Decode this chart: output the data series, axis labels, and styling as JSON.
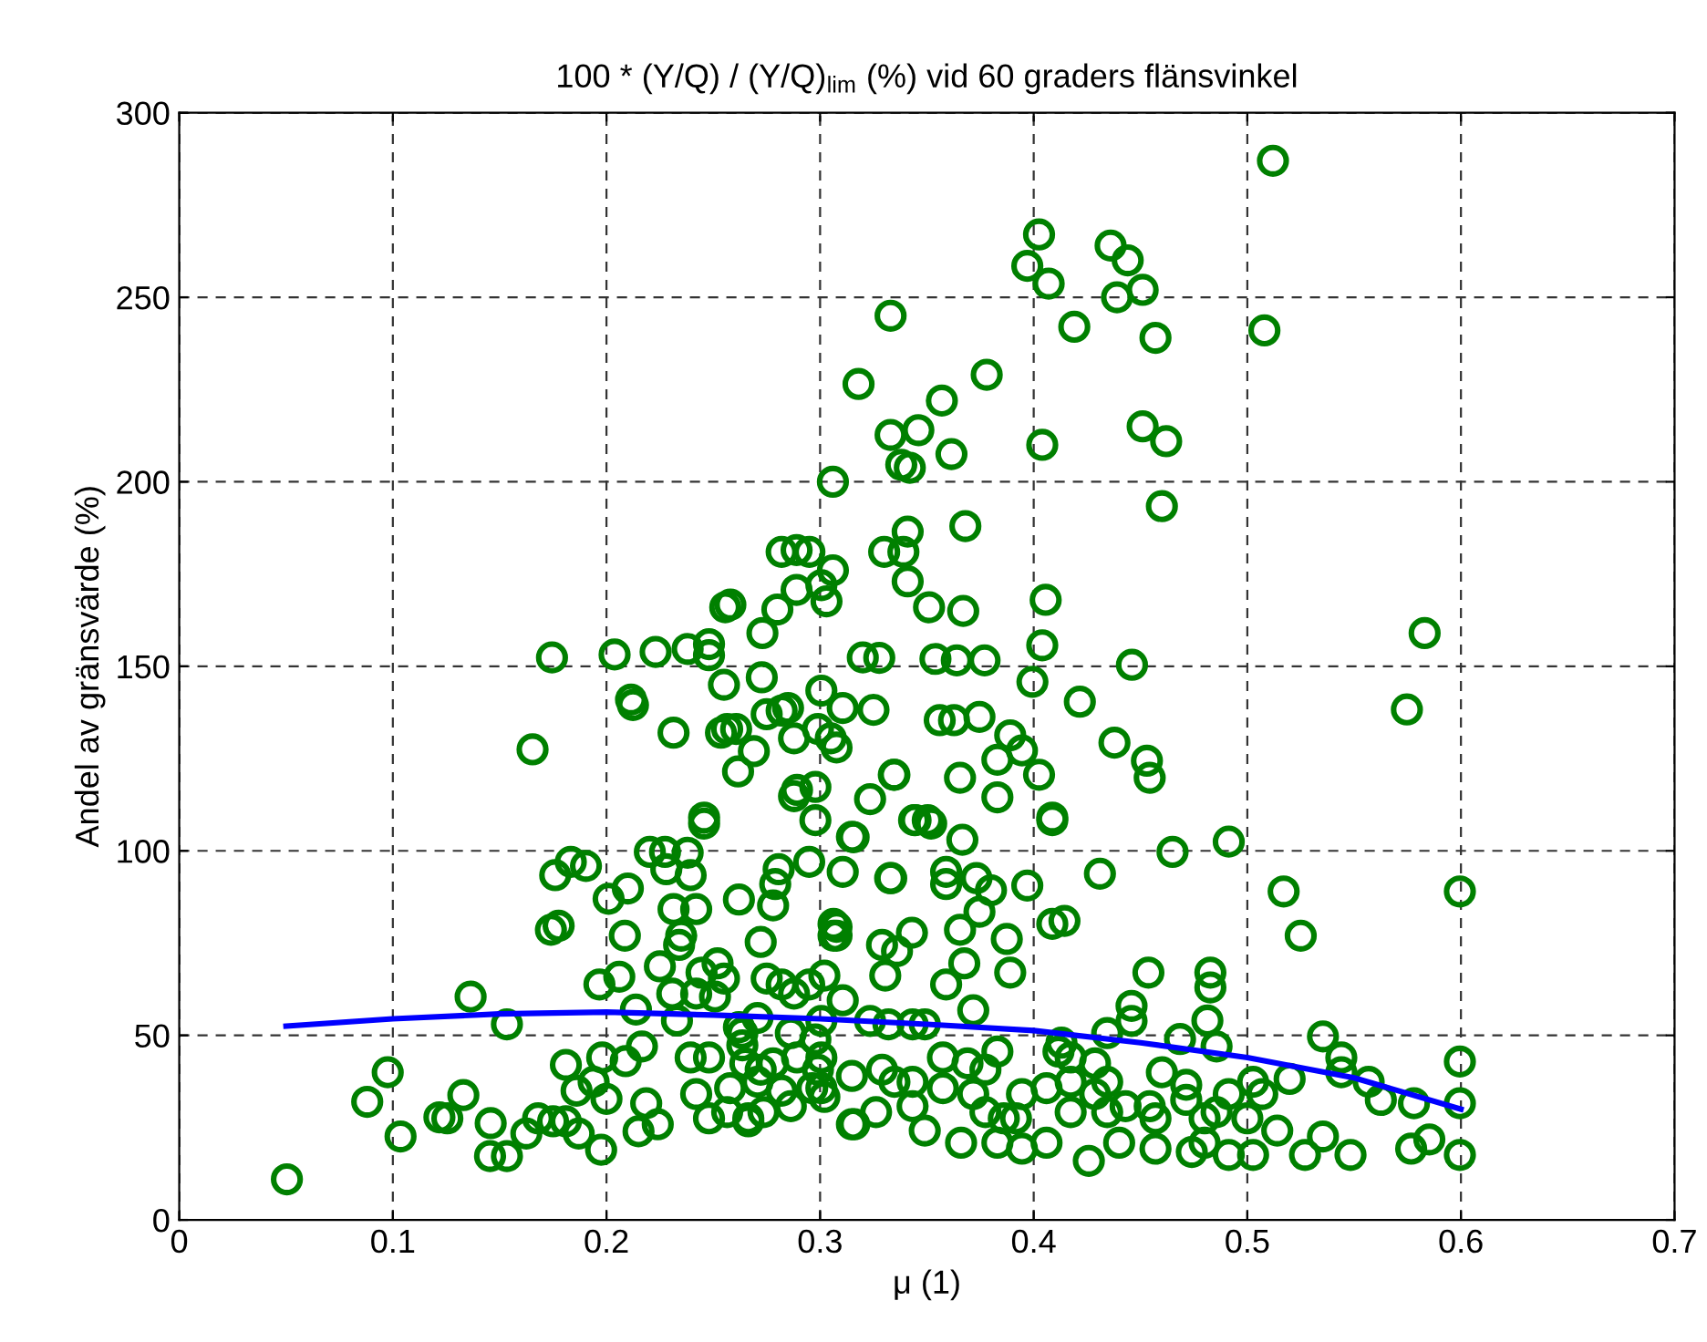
{
  "chart_data": {
    "type": "scatter",
    "title": "100 * (Y/Q) / (Y/Q)$_{lim}$ (%) vid 60 graders flänsvinkel",
    "xlabel": "μ (1)",
    "ylabel": "Andel av gränsvärde (%)",
    "xlim": [
      0,
      0.7
    ],
    "ylim": [
      0,
      300
    ],
    "xticks": [
      0,
      0.1,
      0.2,
      0.3,
      0.4,
      0.5,
      0.6,
      0.7
    ],
    "yticks": [
      0,
      50,
      100,
      150,
      200,
      250,
      300
    ],
    "grid": true,
    "series": [
      {
        "marker": "circle",
        "color": "#008000",
        "x": [
          0.512,
          0.4025,
          0.397,
          0.407,
          0.436,
          0.444,
          0.439,
          0.451,
          0.419,
          0.457,
          0.508,
          0.333,
          0.318,
          0.378,
          0.357,
          0.333,
          0.346,
          0.3615,
          0.338,
          0.342,
          0.306,
          0.404,
          0.451,
          0.462,
          0.46,
          0.368,
          0.341,
          0.339,
          0.33,
          0.282,
          0.289,
          0.295,
          0.306,
          0.341,
          0.289,
          0.3006,
          0.303,
          0.28,
          0.258,
          0.273,
          0.351,
          0.367,
          0.4056,
          0.404,
          0.583,
          0.32,
          0.3277,
          0.354,
          0.364,
          0.377,
          0.3994,
          0.446,
          0.2727,
          0.3006,
          0.1745,
          0.2038,
          0.223,
          0.238,
          0.248,
          0.248,
          0.2556,
          0.255,
          0.2115,
          0.0504,
          0.088,
          0.0976,
          0.1036,
          0.1218,
          0.1255,
          0.133,
          0.1364,
          0.1534,
          0.1458,
          0.1455,
          0.1534,
          0.1625,
          0.168,
          0.175,
          0.181,
          0.181,
          0.186,
          0.187,
          0.194,
          0.198,
          0.2,
          0.1975,
          0.209,
          0.2166,
          0.2186,
          0.215,
          0.224,
          0.1654,
          0.2314,
          0.2124,
          0.176,
          0.1833,
          0.1904,
          0.174,
          0.1776,
          0.1967,
          0.206,
          0.201,
          0.21,
          0.2086,
          0.2203,
          0.2274,
          0.238,
          0.228,
          0.2394,
          0.2138,
          0.225,
          0.2314,
          0.242,
          0.235,
          0.234,
          0.2308,
          0.233,
          0.2457,
          0.2457,
          0.2536,
          0.2607,
          0.269,
          0.2616,
          0.282,
          0.2878,
          0.299,
          0.305,
          0.3077,
          0.2878,
          0.2978,
          0.2978,
          0.3234,
          0.3348,
          0.3157,
          0.2949,
          0.2806,
          0.279,
          0.3106,
          0.3333,
          0.262,
          0.278,
          0.2722,
          0.3077,
          0.3077,
          0.329,
          0.343,
          0.336,
          0.3305,
          0.3504,
          0.3447,
          0.2445,
          0.252,
          0.255,
          0.242,
          0.2508,
          0.262,
          0.2707,
          0.2636,
          0.275,
          0.282,
          0.2878,
          0.2949,
          0.302,
          0.3106,
          0.3234,
          0.332,
          0.3433,
          0.2978,
          0.2394,
          0.248,
          0.242,
          0.248,
          0.265,
          0.2707,
          0.278,
          0.282,
          0.2565,
          0.2664,
          0.2735,
          0.2963,
          0.302,
          0.2892,
          0.299,
          0.316,
          0.2565,
          0.275,
          0.285,
          0.3106,
          0.325,
          0.356,
          0.5747,
          0.5995,
          0.517,
          0.525,
          0.4913,
          0.465,
          0.431,
          0.397,
          0.4087,
          0.4144,
          0.4087,
          0.4087,
          0.4378,
          0.453,
          0.4543,
          0.4216,
          0.383,
          0.4025,
          0.3945,
          0.389,
          0.383,
          0.3655,
          0.3627,
          0.3746,
          0.3345,
          0.3149,
          0.344,
          0.352,
          0.3666,
          0.3328,
          0.359,
          0.359,
          0.3732,
          0.38,
          0.3063,
          0.3063,
          0.3655,
          0.3675,
          0.3746,
          0.3874,
          0.389,
          0.359,
          0.3717,
          0.4537,
          0.4827,
          0.4827,
          0.4813,
          0.4458,
          0.4458,
          0.4344,
          0.4685,
          0.4856,
          0.413,
          0.5354,
          0.544,
          0.5995,
          0.544,
          0.5568,
          0.5625,
          0.578,
          0.5995,
          0.5198,
          0.507,
          0.5027,
          0.46,
          0.4714,
          0.5995,
          0.5767,
          0.5852,
          0.5483,
          0.5354,
          0.527,
          0.514,
          0.5027,
          0.4913,
          0.48,
          0.4258,
          0.406,
          0.44,
          0.457,
          0.474,
          0.4543,
          0.4344,
          0.4173,
          0.4116,
          0.4173,
          0.4287,
          0.406,
          0.4344,
          0.457,
          0.48,
          0.4913,
          0.383,
          0.3774,
          0.3945,
          0.3917,
          0.383,
          0.3945,
          0.366,
          0.349,
          0.3149,
          0.3006,
          0.2863,
          0.329,
          0.3433,
          0.3575,
          0.3149,
          0.3006,
          0.3575,
          0.369,
          0.2664,
          0.2579,
          0.2722,
          0.2636,
          0.2863,
          0.3006,
          0.349,
          0.3262,
          0.3433,
          0.3348,
          0.3717,
          0.3774,
          0.386,
          0.4173,
          0.4287,
          0.443,
          0.4714,
          0.4856,
          0.5,
          0.2892
        ],
        "values": [
          287,
          267,
          258.5,
          253.7,
          264,
          260,
          250,
          252,
          242,
          239,
          241,
          245,
          226.5,
          229,
          222,
          212.7,
          214,
          207.5,
          204.6,
          203.8,
          200,
          210,
          215,
          211,
          193.4,
          188,
          186.5,
          181,
          181,
          181,
          181.5,
          181,
          176,
          173,
          170.7,
          172,
          167.6,
          165.4,
          166.7,
          159,
          166,
          165,
          168,
          155.7,
          159,
          152.4,
          152.3,
          152,
          151.6,
          151.6,
          145.8,
          150.4,
          147,
          143.4,
          152.4,
          153.2,
          153.9,
          154.7,
          156,
          153,
          166,
          145,
          141,
          11,
          32,
          40,
          22.6,
          27.8,
          27.5,
          33.8,
          60.5,
          53,
          26.2,
          17.3,
          17.3,
          23.4,
          27.5,
          26.7,
          26.7,
          42,
          35,
          23.4,
          37.4,
          44,
          32.8,
          19,
          43,
          47,
          31.6,
          24,
          25.9,
          127.5,
          132,
          139.5,
          93.4,
          97,
          95.9,
          78.6,
          79.7,
          63.8,
          65.9,
          87,
          89.8,
          77,
          99.7,
          99.7,
          99.5,
          95,
          93.4,
          57,
          68.7,
          84.2,
          84.2,
          77,
          74.5,
          61.3,
          54,
          109,
          107.4,
          132,
          133,
          127,
          121.5,
          138,
          130.5,
          133,
          130.5,
          128,
          114.8,
          117.3,
          108.3,
          114,
          120.6,
          103.7,
          97,
          95,
          91,
          94.3,
          92.6,
          86.8,
          85.2,
          75.3,
          79.4,
          77,
          74.5,
          77.8,
          72.8,
          66.2,
          108.3,
          108.3,
          67,
          69.5,
          65.4,
          61.3,
          60.5,
          52.2,
          54.7,
          47.3,
          65.4,
          63.8,
          61.3,
          63.8,
          66.2,
          59.5,
          53.9,
          53,
          53,
          48.9,
          44,
          44,
          34.1,
          27.5,
          42.4,
          37.4,
          42.4,
          35,
          29.2,
          26.7,
          29.2,
          35.7,
          33.3,
          44,
          40.7,
          25.9,
          133,
          137,
          138.7,
          138.7,
          138.2,
          135.4,
          138.3,
          89,
          89,
          77,
          102.5,
          99.7,
          93.8,
          90.6,
          80.2,
          81,
          108.3,
          109,
          129.3,
          124.4,
          119.8,
          140.4,
          114.5,
          120.6,
          127.2,
          131.3,
          124.7,
          119.8,
          135.4,
          136.3,
          120.6,
          103.8,
          108.3,
          107.4,
          103,
          92.6,
          94.3,
          91,
          92.6,
          89.3,
          80.2,
          77,
          78.6,
          69.5,
          83.5,
          76.1,
          67,
          63.8,
          56.8,
          67,
          67,
          63,
          54,
          58,
          53.9,
          50.6,
          49,
          47,
          48,
          49.7,
          44,
          42.9,
          40,
          37.4,
          32.5,
          31.6,
          31.6,
          38.2,
          34.1,
          37.4,
          40,
          36.6,
          17.6,
          19.3,
          21.8,
          17.6,
          22.6,
          17.6,
          24.2,
          17.6,
          17.6,
          20.9,
          16,
          20.9,
          20.9,
          19.3,
          18.4,
          30.8,
          29.2,
          29.2,
          45.6,
          44,
          42.4,
          35.7,
          37.4,
          27.5,
          27.5,
          34.1,
          45.6,
          40.7,
          34.1,
          27.5,
          20.9,
          19.3,
          20.9,
          24.2,
          25.9,
          35.7,
          30.8,
          40.7,
          37.4,
          35.7,
          39,
          44,
          44,
          42.4,
          27.5,
          35.7,
          40.7,
          50.6,
          50.6,
          53.9,
          53,
          29.2,
          30.8,
          37.4,
          34.1,
          29.2,
          27.5,
          37.4,
          34.1,
          30.8,
          32.5,
          29.2,
          27.5,
          116.5
        ]
      },
      {
        "type": "line",
        "marker": "none",
        "line_style": "solid",
        "color": "#0000ff",
        "x": [
          0.05,
          0.1,
          0.15,
          0.2,
          0.25,
          0.3,
          0.35,
          0.4,
          0.45,
          0.5,
          0.55,
          0.6
        ],
        "values": [
          52.5,
          54.5,
          55.8,
          56.3,
          55.5,
          54.5,
          53,
          51.3,
          48,
          44,
          38.5,
          30
        ]
      }
    ]
  }
}
